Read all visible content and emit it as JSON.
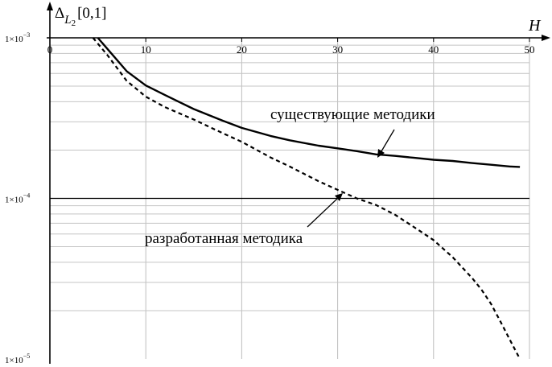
{
  "chart_data": {
    "type": "line",
    "title": "",
    "ylabel": "Δ L2[0,1]",
    "ylabel_parts": {
      "delta": "Δ",
      "sub": "L",
      "subsub": "2",
      "interval": "[0,1]"
    },
    "xlabel": "H",
    "y_scale": "log",
    "xlim": [
      0,
      50
    ],
    "ylim": [
      1e-05,
      0.001
    ],
    "grid": true,
    "x_ticks": [
      {
        "value": 0,
        "label": "0"
      },
      {
        "value": 10,
        "label": "10"
      },
      {
        "value": 20,
        "label": "20"
      },
      {
        "value": 30,
        "label": "30"
      },
      {
        "value": 40,
        "label": "40"
      },
      {
        "value": 50,
        "label": "50"
      }
    ],
    "y_ticks": [
      {
        "value": 0.001,
        "mant": "1×10",
        "exp": "−3"
      },
      {
        "value": 0.0001,
        "mant": "1×10",
        "exp": "−4"
      },
      {
        "value": 1e-05,
        "mant": "1×10",
        "exp": "−5"
      }
    ],
    "series": [
      {
        "style": "solid",
        "annotation": "существующие методики",
        "x": [
          5,
          8,
          10,
          12,
          15,
          18,
          20,
          23,
          25,
          28,
          30,
          32,
          34,
          36,
          38,
          40,
          42,
          44,
          46,
          48,
          49
        ],
        "y": [
          0.001,
          0.00062,
          0.000505,
          0.00044,
          0.00036,
          0.000305,
          0.000275,
          0.000245,
          0.00023,
          0.000213,
          0.000205,
          0.000197,
          0.000188,
          0.000184,
          0.000179,
          0.000174,
          0.000171,
          0.000166,
          0.000162,
          0.000158,
          0.000157
        ]
      },
      {
        "style": "dashed",
        "annotation": "разработанная методика",
        "x": [
          4.5,
          6,
          8,
          10,
          12,
          15,
          18,
          20,
          23,
          25,
          28,
          30,
          32,
          34,
          36,
          38,
          40,
          42,
          44,
          45,
          46,
          47,
          48,
          49
        ],
        "y": [
          0.001,
          0.00078,
          0.00054,
          0.00043,
          0.00037,
          0.00031,
          0.000255,
          0.000225,
          0.00018,
          0.000158,
          0.000128,
          0.000113,
          0.0001,
          9.1e-05,
          7.9e-05,
          6.6e-05,
          5.5e-05,
          4.3e-05,
          3.2e-05,
          2.7e-05,
          2.2e-05,
          1.7e-05,
          1.3e-05,
          1e-05
        ]
      }
    ]
  }
}
